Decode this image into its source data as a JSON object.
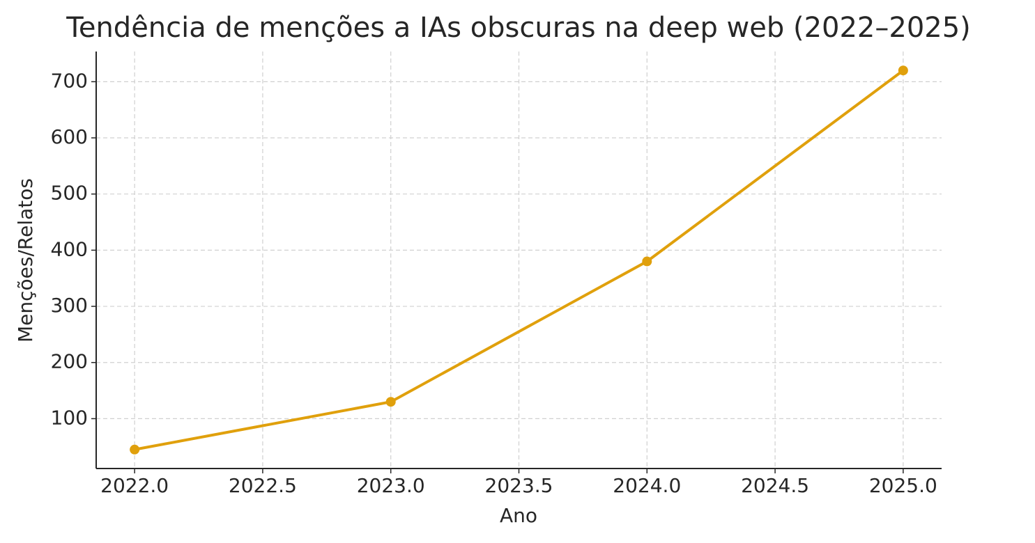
{
  "chart_data": {
    "type": "line",
    "title": "Tendência de menções a IAs obscuras na deep web (2022–2025)",
    "x_label": "Ano",
    "y_label": "Menções/Relatos",
    "x": [
      2022,
      2023,
      2024,
      2025
    ],
    "series": [
      {
        "color": "#e0a00c",
        "values": [
          45,
          130,
          380,
          720
        ]
      }
    ],
    "xlim": [
      2021.85,
      2025.15
    ],
    "xticks": [
      {
        "value": 2022,
        "label": "2022.0"
      },
      {
        "value": 2022.5,
        "label": "2022.5"
      },
      {
        "value": 2023,
        "label": "2023.0"
      },
      {
        "value": 2023.5,
        "label": "2023.5"
      },
      {
        "value": 2024,
        "label": "2024.0"
      },
      {
        "value": 2024.5,
        "label": "2024.5"
      },
      {
        "value": 2025,
        "label": "2025.0"
      }
    ],
    "ylim": [
      11.25,
      753.75
    ],
    "yticks": [
      100,
      200,
      300,
      400,
      500,
      600,
      700
    ],
    "grid": true
  }
}
